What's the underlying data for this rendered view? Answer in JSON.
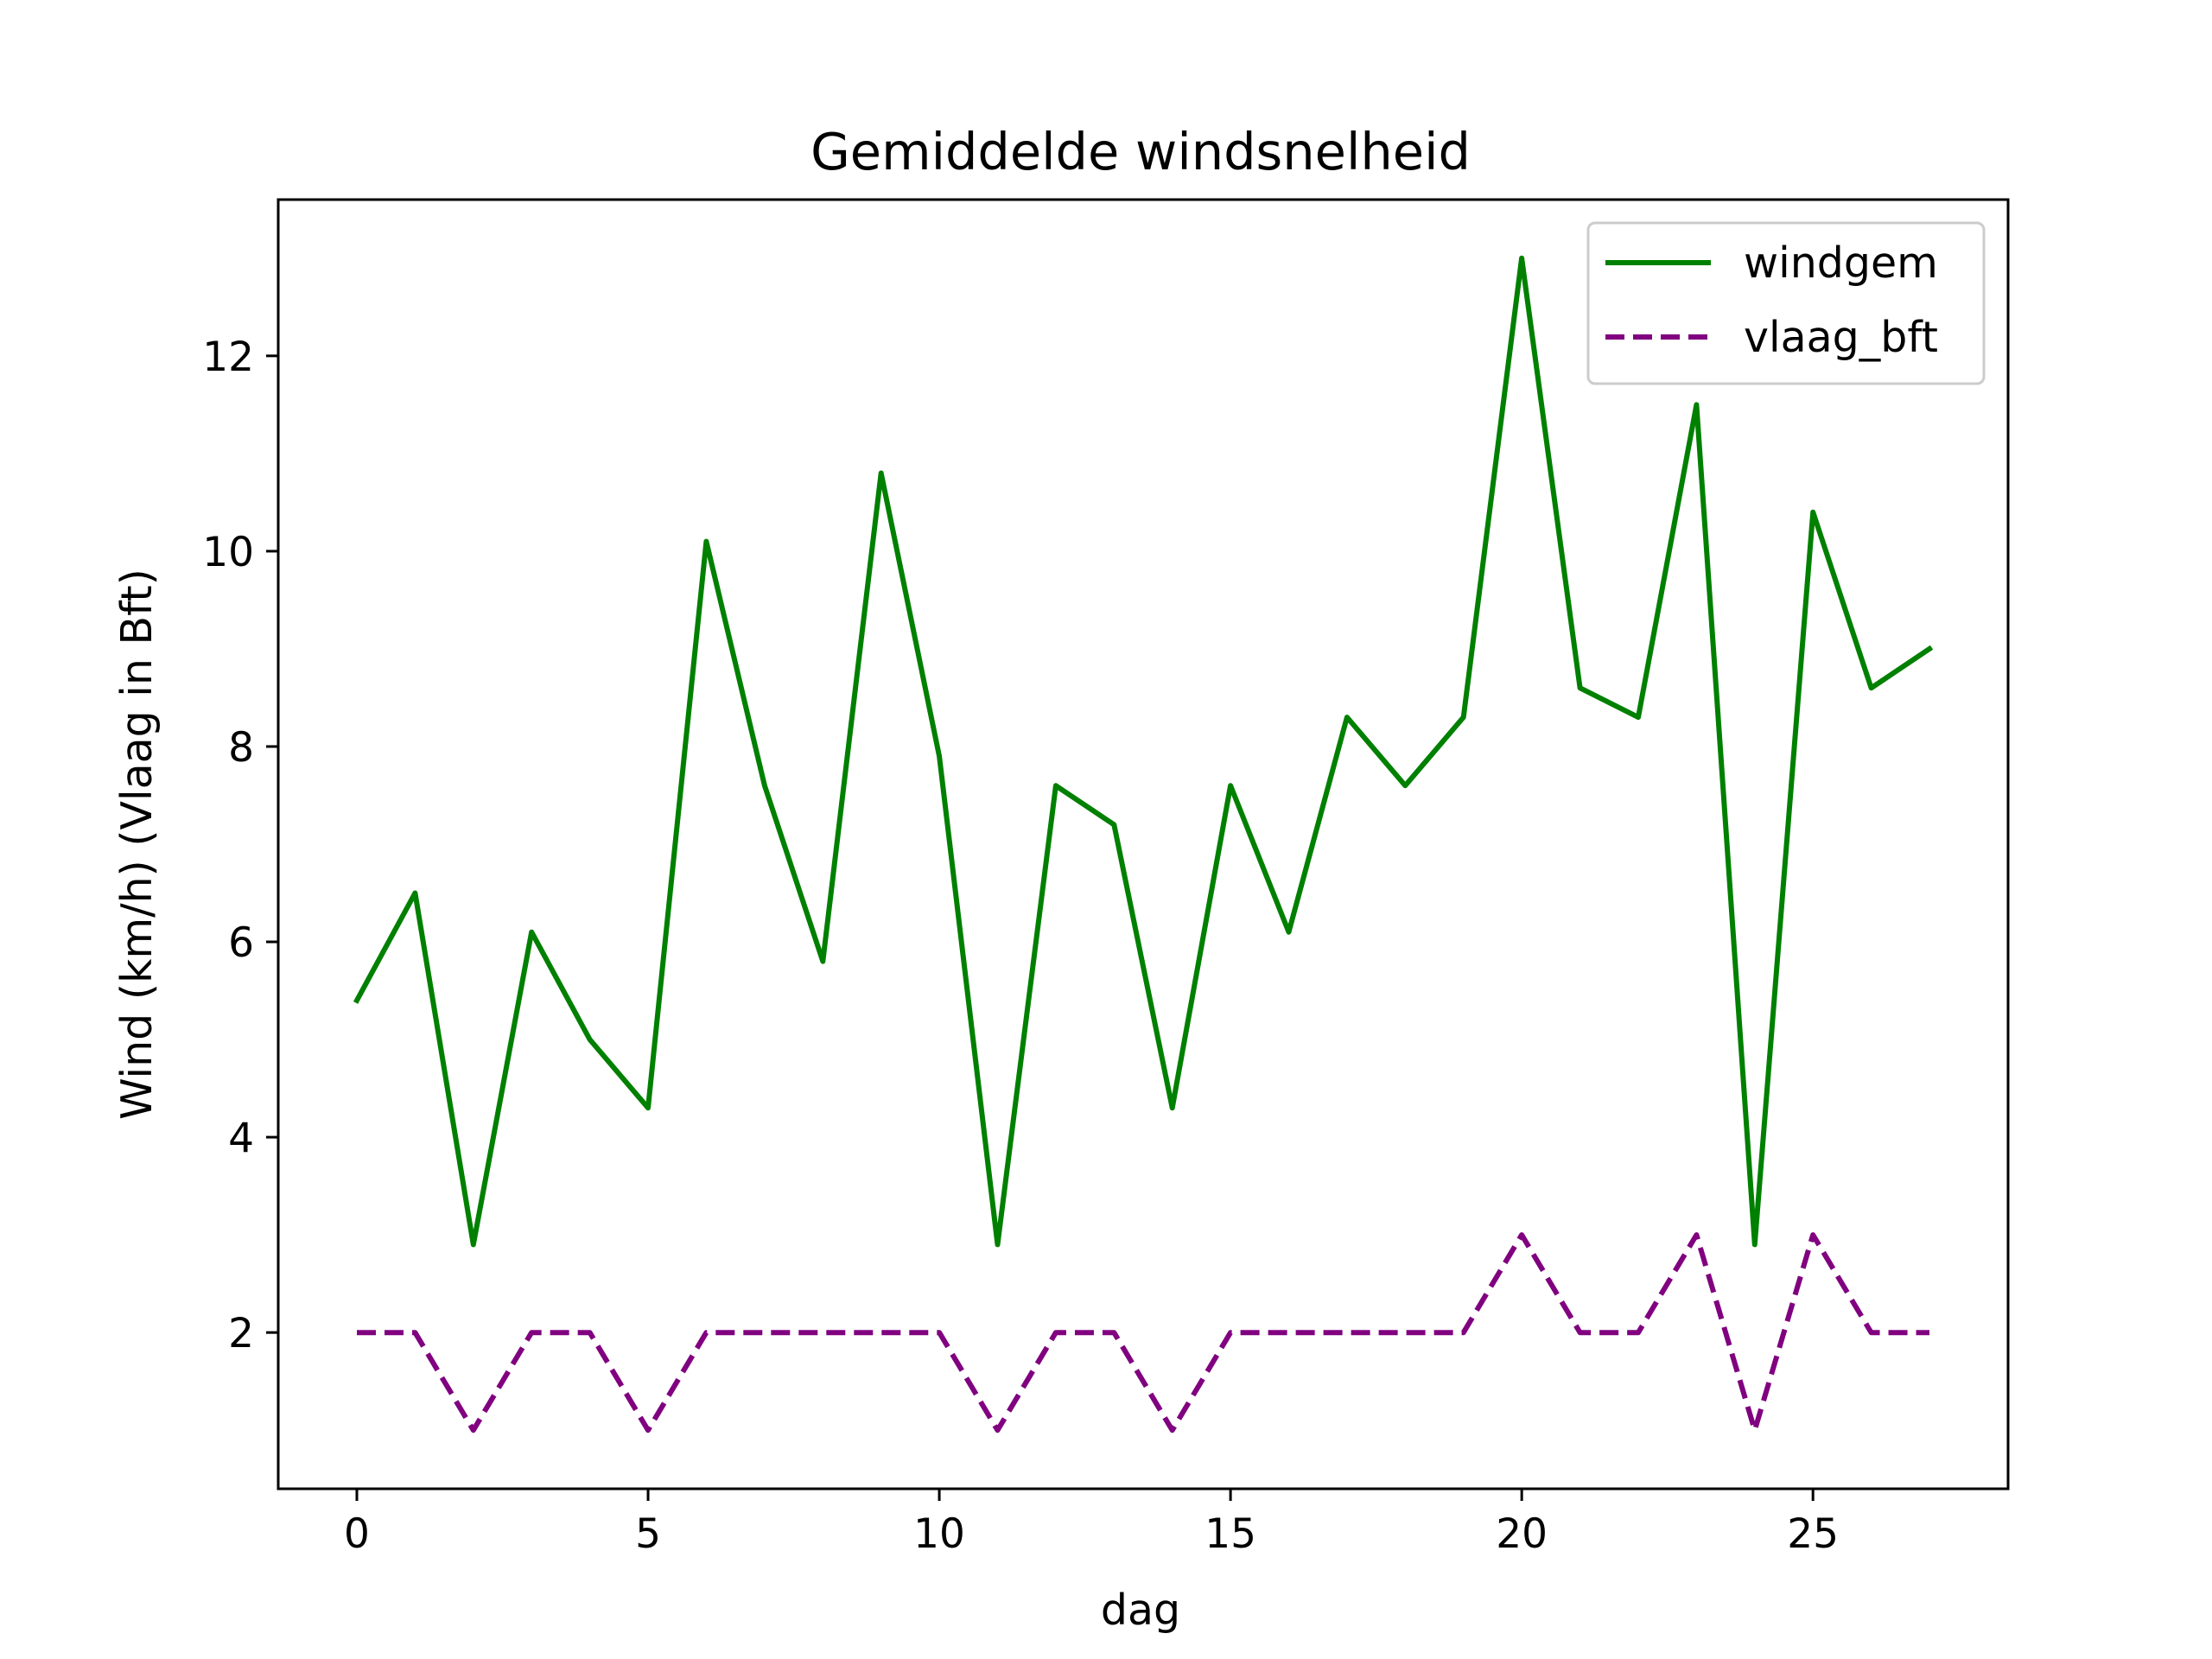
{
  "chart_data": {
    "type": "line",
    "title": "Gemiddelde windsnelheid",
    "xlabel": "dag",
    "ylabel": "Wind (km/h) (Vlaag in Bft)",
    "xlim": [
      -1.35,
      28.35
    ],
    "ylim": [
      0.4,
      13.6
    ],
    "xticks": [
      0,
      5,
      10,
      15,
      20,
      25
    ],
    "yticks": [
      2,
      4,
      6,
      8,
      10,
      12
    ],
    "grid": false,
    "legend_position": "top-right",
    "x": [
      0,
      1,
      2,
      3,
      4,
      5,
      6,
      7,
      8,
      9,
      10,
      11,
      12,
      13,
      14,
      15,
      16,
      17,
      18,
      19,
      20,
      21,
      22,
      23,
      24,
      25,
      26,
      27
    ],
    "series": [
      {
        "name": "windgem",
        "color": "#008000",
        "style": "solid",
        "values": [
          5.4,
          6.5,
          2.9,
          6.1,
          5.0,
          4.3,
          10.1,
          7.6,
          5.8,
          10.8,
          7.9,
          2.9,
          7.6,
          7.2,
          4.3,
          7.6,
          6.1,
          8.3,
          7.6,
          8.3,
          13.0,
          8.6,
          8.3,
          11.5,
          2.9,
          10.4,
          8.6,
          9.0
        ]
      },
      {
        "name": "vlaag_bft",
        "color": "#800080",
        "style": "dashed",
        "values": [
          2,
          2,
          1,
          2,
          2,
          1,
          2,
          2,
          2,
          2,
          2,
          1,
          2,
          2,
          1,
          2,
          2,
          2,
          2,
          2,
          3,
          2,
          2,
          3,
          1,
          3,
          2,
          2
        ]
      }
    ]
  }
}
